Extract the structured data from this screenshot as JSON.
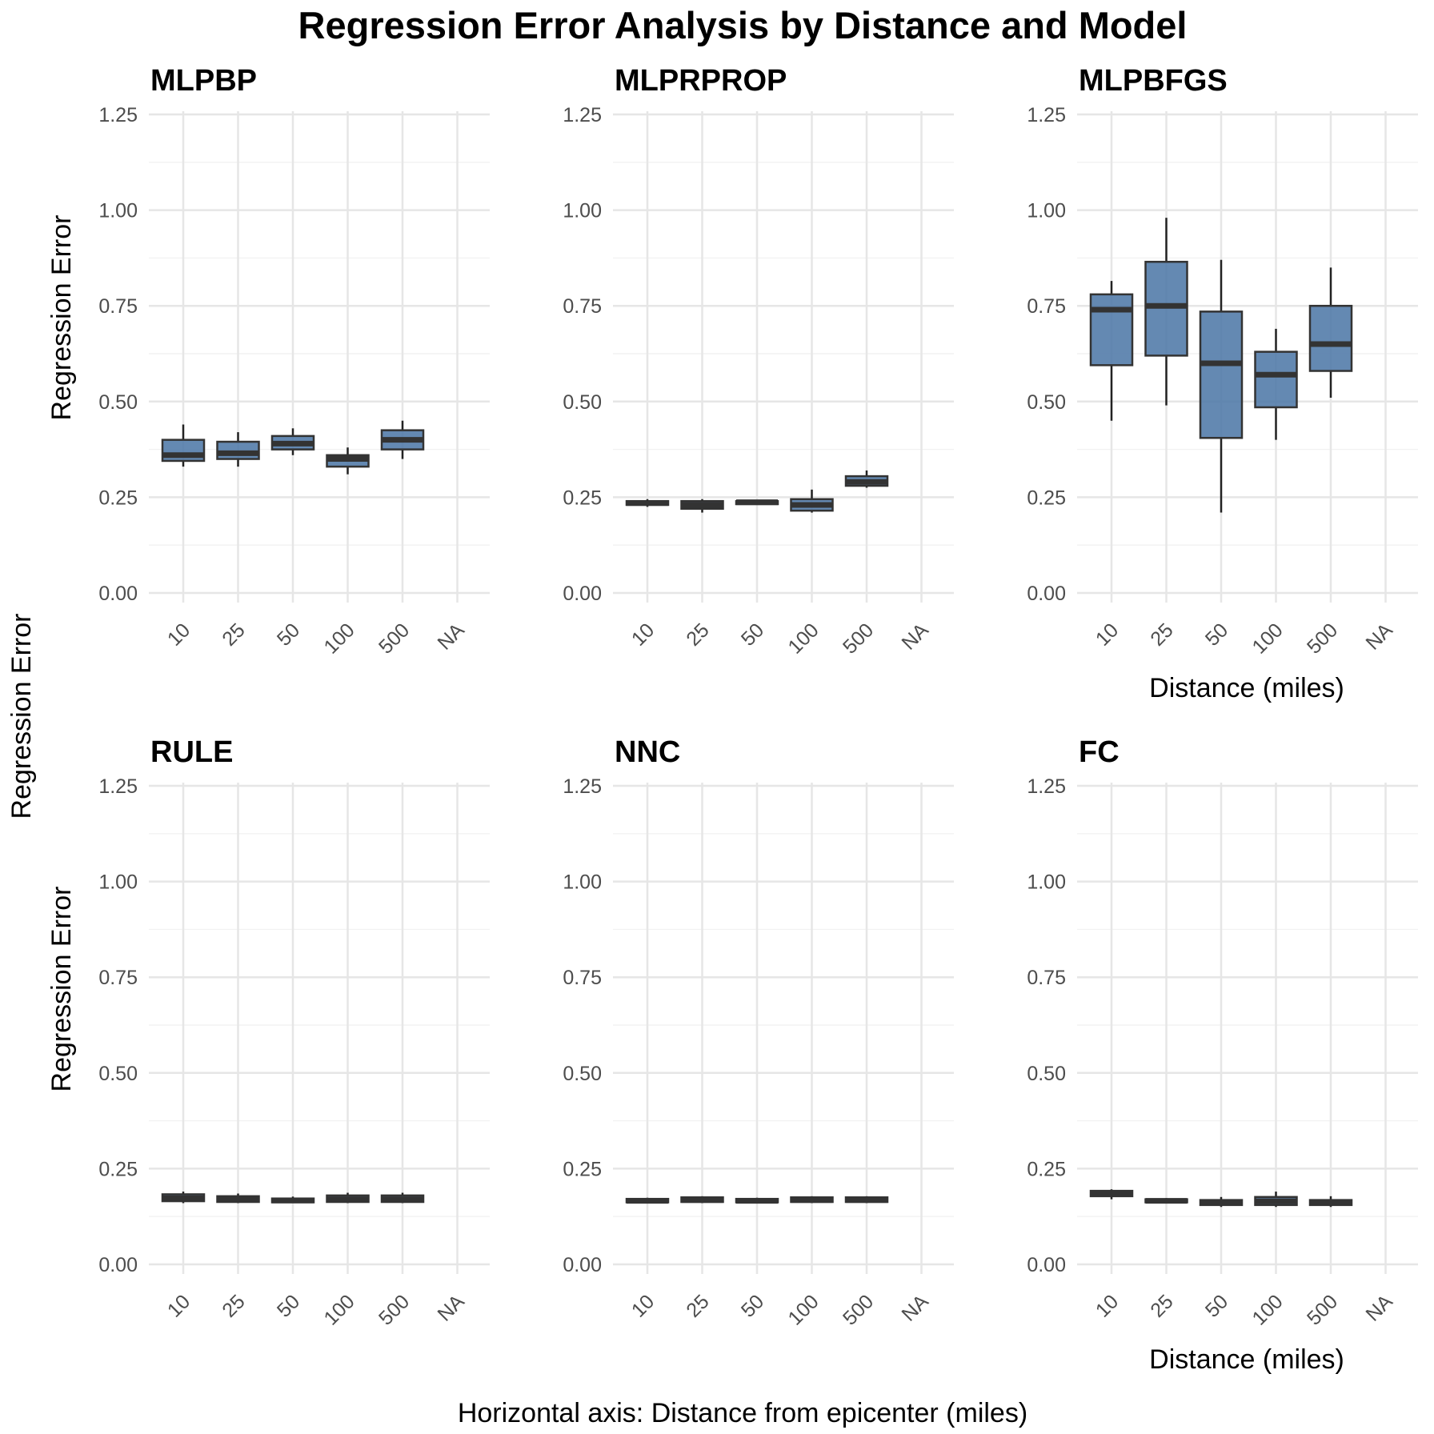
{
  "chart_data": {
    "type": "box",
    "title": "Regression Error Analysis by Distance and Model",
    "shared_ylabel": "Regression Error",
    "caption": "Horizontal axis: Distance from epicenter (miles)",
    "categories": [
      "10",
      "25",
      "50",
      "100",
      "500",
      "NA"
    ],
    "ylim": [
      -0.05,
      1.27
    ],
    "yticks": [
      0.0,
      0.25,
      0.5,
      0.75,
      1.0,
      1.25
    ],
    "ytick_labels": [
      "0.00",
      "0.25",
      "0.50",
      "0.75",
      "1.00",
      "1.25"
    ],
    "grid": true,
    "box_color": "#4e79a7",
    "panels": [
      {
        "name": "MLPBP",
        "ylabel": "Regression Error",
        "xlabel": "",
        "boxes": [
          {
            "x": "10",
            "min": 0.33,
            "q1": 0.345,
            "median": 0.36,
            "q3": 0.4,
            "max": 0.44
          },
          {
            "x": "25",
            "min": 0.33,
            "q1": 0.35,
            "median": 0.365,
            "q3": 0.395,
            "max": 0.42
          },
          {
            "x": "50",
            "min": 0.36,
            "q1": 0.375,
            "median": 0.39,
            "q3": 0.41,
            "max": 0.43
          },
          {
            "x": "100",
            "min": 0.31,
            "q1": 0.33,
            "median": 0.35,
            "q3": 0.36,
            "max": 0.38
          },
          {
            "x": "500",
            "min": 0.35,
            "q1": 0.375,
            "median": 0.4,
            "q3": 0.425,
            "max": 0.45
          }
        ]
      },
      {
        "name": "MLPRPROP",
        "ylabel": "",
        "xlabel": "",
        "boxes": [
          {
            "x": "10",
            "min": 0.225,
            "q1": 0.23,
            "median": 0.235,
            "q3": 0.24,
            "max": 0.245
          },
          {
            "x": "25",
            "min": 0.21,
            "q1": 0.22,
            "median": 0.23,
            "q3": 0.24,
            "max": 0.245
          },
          {
            "x": "50",
            "min": 0.23,
            "q1": 0.232,
            "median": 0.237,
            "q3": 0.24,
            "max": 0.243
          },
          {
            "x": "100",
            "min": 0.21,
            "q1": 0.215,
            "median": 0.23,
            "q3": 0.245,
            "max": 0.27
          },
          {
            "x": "500",
            "min": 0.275,
            "q1": 0.28,
            "median": 0.29,
            "q3": 0.305,
            "max": 0.32
          }
        ]
      },
      {
        "name": "MLPBFGS",
        "ylabel": "",
        "xlabel": "Distance (miles)",
        "boxes": [
          {
            "x": "10",
            "min": 0.45,
            "q1": 0.595,
            "median": 0.74,
            "q3": 0.78,
            "max": 0.815
          },
          {
            "x": "25",
            "min": 0.49,
            "q1": 0.62,
            "median": 0.75,
            "q3": 0.865,
            "max": 0.98
          },
          {
            "x": "50",
            "min": 0.21,
            "q1": 0.405,
            "median": 0.6,
            "q3": 0.735,
            "max": 0.87
          },
          {
            "x": "100",
            "min": 0.4,
            "q1": 0.485,
            "median": 0.57,
            "q3": 0.63,
            "max": 0.69
          },
          {
            "x": "500",
            "min": 0.51,
            "q1": 0.58,
            "median": 0.65,
            "q3": 0.75,
            "max": 0.85
          }
        ]
      },
      {
        "name": "RULE",
        "ylabel": "Regression Error",
        "xlabel": "",
        "boxes": [
          {
            "x": "10",
            "min": 0.16,
            "q1": 0.165,
            "median": 0.173,
            "q3": 0.183,
            "max": 0.19
          },
          {
            "x": "25",
            "min": 0.16,
            "q1": 0.163,
            "median": 0.17,
            "q3": 0.178,
            "max": 0.185
          },
          {
            "x": "50",
            "min": 0.16,
            "q1": 0.162,
            "median": 0.167,
            "q3": 0.172,
            "max": 0.177
          },
          {
            "x": "100",
            "min": 0.16,
            "q1": 0.163,
            "median": 0.17,
            "q3": 0.18,
            "max": 0.187
          },
          {
            "x": "500",
            "min": 0.16,
            "q1": 0.163,
            "median": 0.17,
            "q3": 0.18,
            "max": 0.187
          }
        ]
      },
      {
        "name": "NNC",
        "ylabel": "",
        "xlabel": "",
        "boxes": [
          {
            "x": "10",
            "min": 0.16,
            "q1": 0.162,
            "median": 0.166,
            "q3": 0.171,
            "max": 0.174
          },
          {
            "x": "25",
            "min": 0.16,
            "q1": 0.163,
            "median": 0.168,
            "q3": 0.175,
            "max": 0.178
          },
          {
            "x": "50",
            "min": 0.16,
            "q1": 0.162,
            "median": 0.166,
            "q3": 0.171,
            "max": 0.174
          },
          {
            "x": "100",
            "min": 0.16,
            "q1": 0.163,
            "median": 0.168,
            "q3": 0.175,
            "max": 0.178
          },
          {
            "x": "500",
            "min": 0.16,
            "q1": 0.163,
            "median": 0.168,
            "q3": 0.175,
            "max": 0.178
          }
        ]
      },
      {
        "name": "FC",
        "ylabel": "",
        "xlabel": "Distance (miles)",
        "boxes": [
          {
            "x": "10",
            "min": 0.17,
            "q1": 0.178,
            "median": 0.185,
            "q3": 0.192,
            "max": 0.196
          },
          {
            "x": "25",
            "min": 0.16,
            "q1": 0.162,
            "median": 0.166,
            "q3": 0.17,
            "max": 0.173
          },
          {
            "x": "50",
            "min": 0.15,
            "q1": 0.155,
            "median": 0.16,
            "q3": 0.168,
            "max": 0.176
          },
          {
            "x": "100",
            "min": 0.15,
            "q1": 0.155,
            "median": 0.165,
            "q3": 0.176,
            "max": 0.19
          },
          {
            "x": "500",
            "min": 0.15,
            "q1": 0.155,
            "median": 0.16,
            "q3": 0.168,
            "max": 0.178
          }
        ]
      }
    ]
  }
}
